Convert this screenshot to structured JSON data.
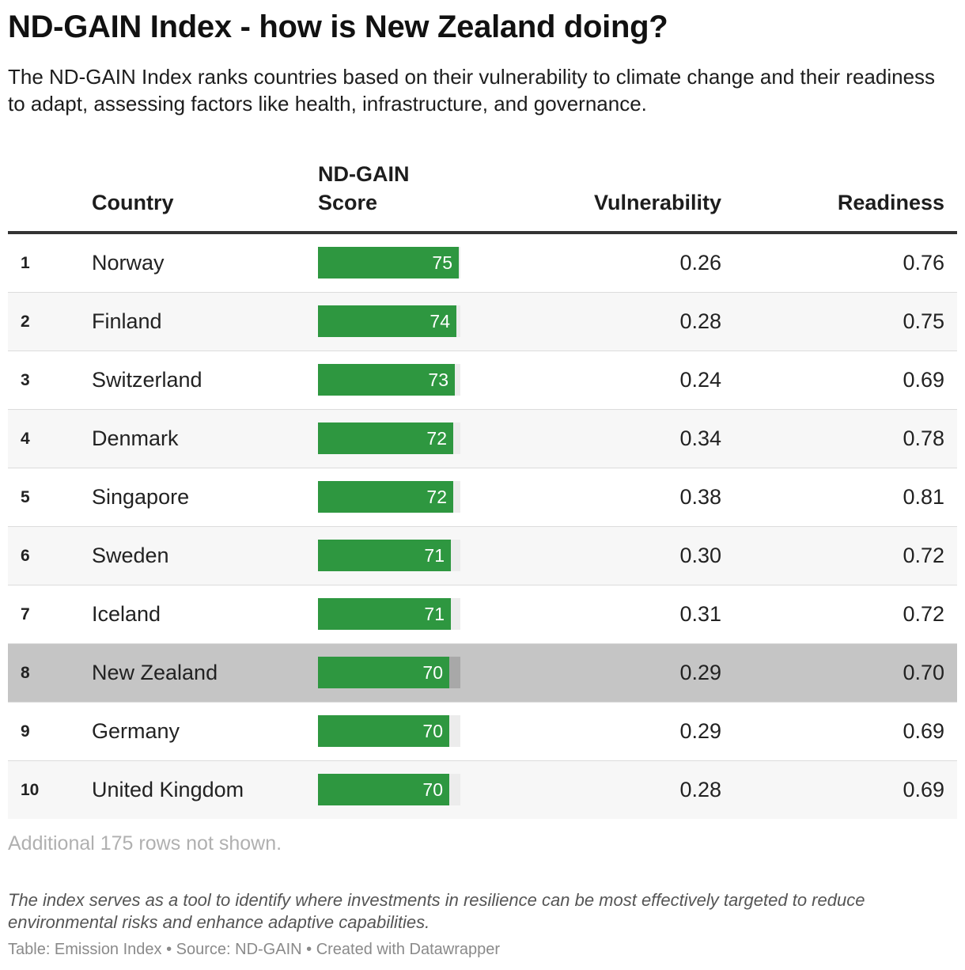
{
  "title": "ND-GAIN Index - how is New Zealand doing?",
  "subtitle": "The ND-GAIN Index ranks countries based on their vulnerability to climate change and their readiness to adapt, assessing factors like health, infrastructure, and governance.",
  "headers": {
    "country": "Country",
    "score_line1": "ND-GAIN",
    "score_line2": "Score",
    "vulnerability": "Vulnerability",
    "readiness": "Readiness"
  },
  "colors": {
    "bar": "#2e9740",
    "highlight_row": "#c5c5c5"
  },
  "chart_data": {
    "type": "table",
    "score_scale_max": 76,
    "highlighted_country": "New Zealand",
    "rows": [
      {
        "rank": "1",
        "country": "Norway",
        "score": 75,
        "vulnerability": "0.26",
        "readiness": "0.76"
      },
      {
        "rank": "2",
        "country": "Finland",
        "score": 74,
        "vulnerability": "0.28",
        "readiness": "0.75"
      },
      {
        "rank": "3",
        "country": "Switzerland",
        "score": 73,
        "vulnerability": "0.24",
        "readiness": "0.69"
      },
      {
        "rank": "4",
        "country": "Denmark",
        "score": 72,
        "vulnerability": "0.34",
        "readiness": "0.78"
      },
      {
        "rank": "5",
        "country": "Singapore",
        "score": 72,
        "vulnerability": "0.38",
        "readiness": "0.81"
      },
      {
        "rank": "6",
        "country": "Sweden",
        "score": 71,
        "vulnerability": "0.30",
        "readiness": "0.72"
      },
      {
        "rank": "7",
        "country": "Iceland",
        "score": 71,
        "vulnerability": "0.31",
        "readiness": "0.72"
      },
      {
        "rank": "8",
        "country": "New Zealand",
        "score": 70,
        "vulnerability": "0.29",
        "readiness": "0.70"
      },
      {
        "rank": "9",
        "country": "Germany",
        "score": 70,
        "vulnerability": "0.29",
        "readiness": "0.69"
      },
      {
        "rank": "10",
        "country": "United Kingdom",
        "score": 70,
        "vulnerability": "0.28",
        "readiness": "0.69"
      }
    ]
  },
  "note": "Additional 175 rows not shown.",
  "description": "The index serves as a tool to identify where investments in resilience can be most effectively targeted to reduce environmental risks and enhance adaptive capabilities.",
  "footer": "Table: Emission Index • Source: ND-GAIN • Created with Datawrapper"
}
